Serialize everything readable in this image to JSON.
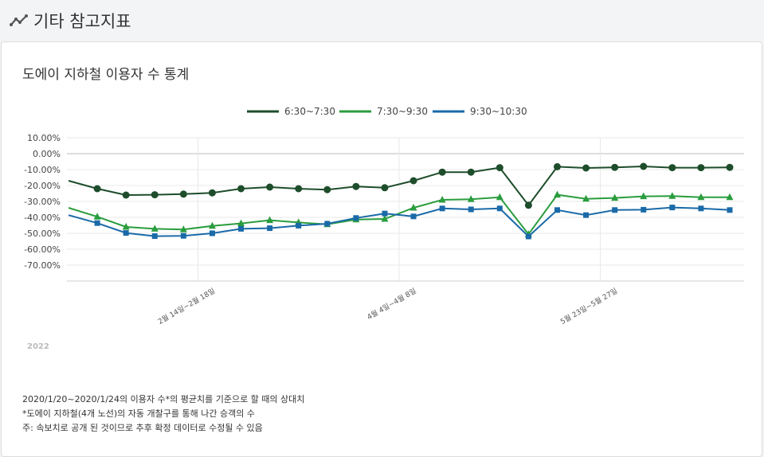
{
  "header": {
    "title": "기타 참고지표",
    "icon": "trend-line-icon"
  },
  "card": {
    "title": "도에이 지하철 이용자 수 통계"
  },
  "chart_data": {
    "type": "line",
    "year_label": "2022",
    "x_tick_labels": [
      {
        "index": 4.5,
        "label": "2월 14일~2월 18일"
      },
      {
        "index": 11.5,
        "label": "4월 4일~4월 8일"
      },
      {
        "index": 18.5,
        "label": "5월 23일~5월 27일"
      }
    ],
    "y_ticks": [
      "10.00%",
      "0.00%",
      "-10.00%",
      "-20.00%",
      "-30.00%",
      "-40.00%",
      "-50.00%",
      "-60.00%",
      "-70.00%"
    ],
    "ylim": [
      -80,
      10
    ],
    "legend_position": "top-center",
    "series": [
      {
        "name": "6:30~7:30",
        "color": "#1e4d2b",
        "marker": "circle",
        "values": [
          -17,
          -22,
          -26,
          -25.8,
          -25.4,
          -24.6,
          -22,
          -21,
          -22,
          -22.6,
          -20.6,
          -21.4,
          -17,
          -11.6,
          -11.6,
          -8.8,
          -32.4,
          -8.2,
          -9,
          -8.6,
          -8,
          -8.8,
          -8.8,
          -8.6
        ]
      },
      {
        "name": "7:30~9:30",
        "color": "#2a9d3e",
        "marker": "triangle",
        "values": [
          -34,
          -39.6,
          -46,
          -47.2,
          -47.6,
          -45.4,
          -43.8,
          -41.8,
          -43.2,
          -44.4,
          -41.4,
          -41,
          -34,
          -29,
          -28.6,
          -27.4,
          -50.6,
          -25.8,
          -28.4,
          -27.8,
          -26.8,
          -26.6,
          -27.4,
          -27.4
        ]
      },
      {
        "name": "9:30~10:30",
        "color": "#1a6aa8",
        "marker": "square",
        "values": [
          -38.6,
          -43.6,
          -49.8,
          -51.8,
          -51.6,
          -50,
          -47.2,
          -46.8,
          -45.2,
          -44,
          -40.4,
          -37.6,
          -39.4,
          -34.4,
          -35,
          -34.4,
          -52,
          -35.4,
          -38.6,
          -35.4,
          -35.2,
          -33.8,
          -34.4,
          -35.4
        ]
      }
    ]
  },
  "notes": [
    "2020/1/20~2020/1/24의 이용자 수*의 평균치를 기준으로 할 때의 상대치",
    "*도에이 지하철(4개 노선)의 자동 개찰구를 통해 나간 승객의 수",
    "주: 속보치로 공개 된 것이므로 추후 확정 데이터로 수정될 수 있음"
  ]
}
